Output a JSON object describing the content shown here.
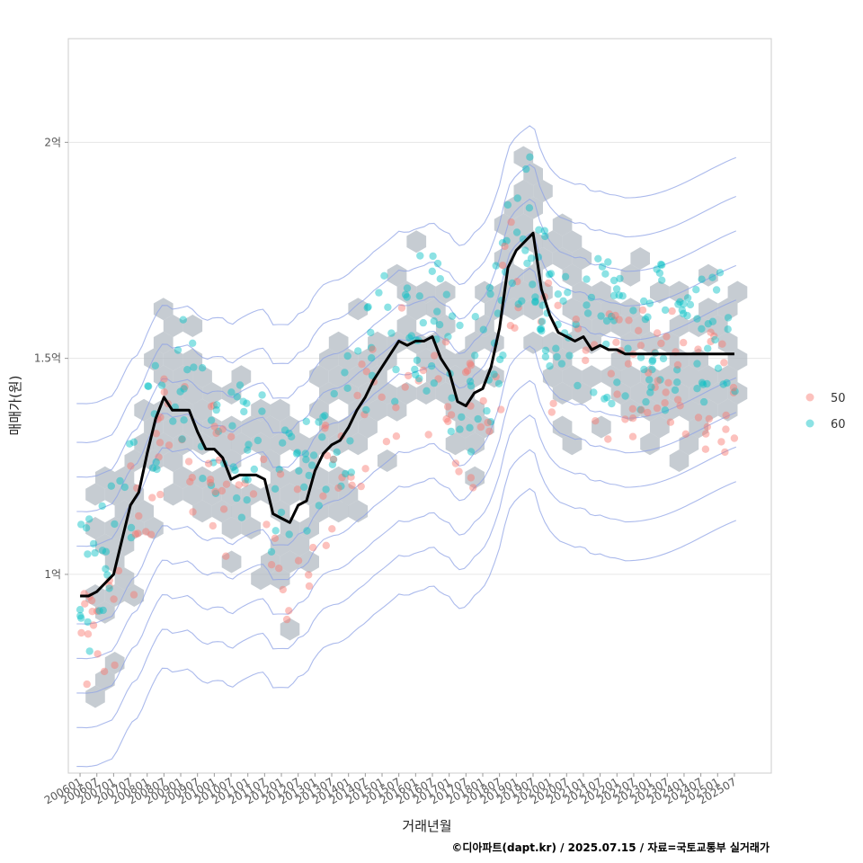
{
  "chart_data": {
    "type": "scatter",
    "title": "",
    "xlabel": "거래년월",
    "ylabel": "매매가(원)",
    "caption": "©디아파트(dapt.kr) / 2025.07.15 / 자료=국토교통부 실거래가",
    "x_tick_labels": [
      "200601",
      "200607",
      "200701",
      "200707",
      "200801",
      "200807",
      "200901",
      "200907",
      "201001",
      "201007",
      "201101",
      "201107",
      "201201",
      "201207",
      "201301",
      "201307",
      "201401",
      "201407",
      "201501",
      "201507",
      "201601",
      "201607",
      "201701",
      "201707",
      "201801",
      "201807",
      "201901",
      "201907",
      "202001",
      "202007",
      "202101",
      "202107",
      "202201",
      "202207",
      "202301",
      "202307",
      "202401",
      "202407",
      "202501",
      "202507"
    ],
    "y_ticks": [
      {
        "value": 100000000,
        "label": "1억"
      },
      {
        "value": 150000000,
        "label": "1.5억"
      },
      {
        "value": 200000000,
        "label": "2억"
      }
    ],
    "xlim": [
      2005.65,
      2026.6
    ],
    "ylim": [
      54000000,
      224000000
    ],
    "grid": true,
    "legend_position": "right",
    "series": [
      {
        "name": "50",
        "color": "#F8766D"
      },
      {
        "name": "60",
        "color": "#00BFC4"
      }
    ],
    "trend_line": {
      "color": "#000000",
      "x": [
        2006.0,
        2006.25,
        2006.5,
        2006.75,
        2007.0,
        2007.25,
        2007.5,
        2007.75,
        2008.0,
        2008.25,
        2008.5,
        2008.75,
        2009.0,
        2009.25,
        2009.5,
        2009.75,
        2010.0,
        2010.25,
        2010.5,
        2010.75,
        2011.0,
        2011.25,
        2011.5,
        2011.75,
        2012.0,
        2012.25,
        2012.5,
        2012.75,
        2013.0,
        2013.25,
        2013.5,
        2013.75,
        2014.0,
        2014.25,
        2014.5,
        2014.75,
        2015.0,
        2015.25,
        2015.5,
        2015.75,
        2016.0,
        2016.25,
        2016.5,
        2016.75,
        2017.0,
        2017.25,
        2017.5,
        2017.75,
        2018.0,
        2018.25,
        2018.5,
        2018.75,
        2019.0,
        2019.25,
        2019.5,
        2019.75,
        2020.0,
        2020.25,
        2020.5,
        2020.75,
        2021.0,
        2021.25,
        2021.5,
        2021.75,
        2022.0,
        2022.25,
        2022.5,
        2022.75,
        2023.0,
        2023.25,
        2023.5,
        2023.75,
        2024.0,
        2024.25,
        2024.5,
        2024.75,
        2025.0,
        2025.25,
        2025.5
      ],
      "y": [
        95000000,
        95000000,
        96000000,
        98000000,
        100000000,
        108000000,
        116000000,
        119000000,
        128000000,
        136000000,
        141000000,
        138000000,
        138000000,
        138000000,
        133000000,
        129000000,
        129000000,
        127000000,
        122000000,
        123000000,
        123000000,
        123000000,
        122000000,
        114000000,
        113000000,
        112000000,
        116000000,
        117000000,
        124000000,
        128000000,
        130000000,
        131000000,
        134000000,
        138000000,
        141000000,
        145000000,
        148000000,
        151000000,
        154000000,
        153000000,
        154000000,
        154000000,
        155000000,
        150000000,
        147000000,
        140000000,
        139000000,
        142000000,
        143000000,
        148000000,
        157000000,
        171000000,
        175000000,
        177000000,
        179000000,
        166000000,
        160000000,
        156000000,
        155000000,
        154000000,
        155000000,
        152000000,
        153000000,
        152000000,
        152000000,
        151000000,
        151000000,
        151000000,
        151000000,
        151000000,
        151000000,
        151000000,
        151000000,
        151000000,
        151000000,
        151000000,
        151000000,
        151000000,
        151000000
      ]
    }
  }
}
